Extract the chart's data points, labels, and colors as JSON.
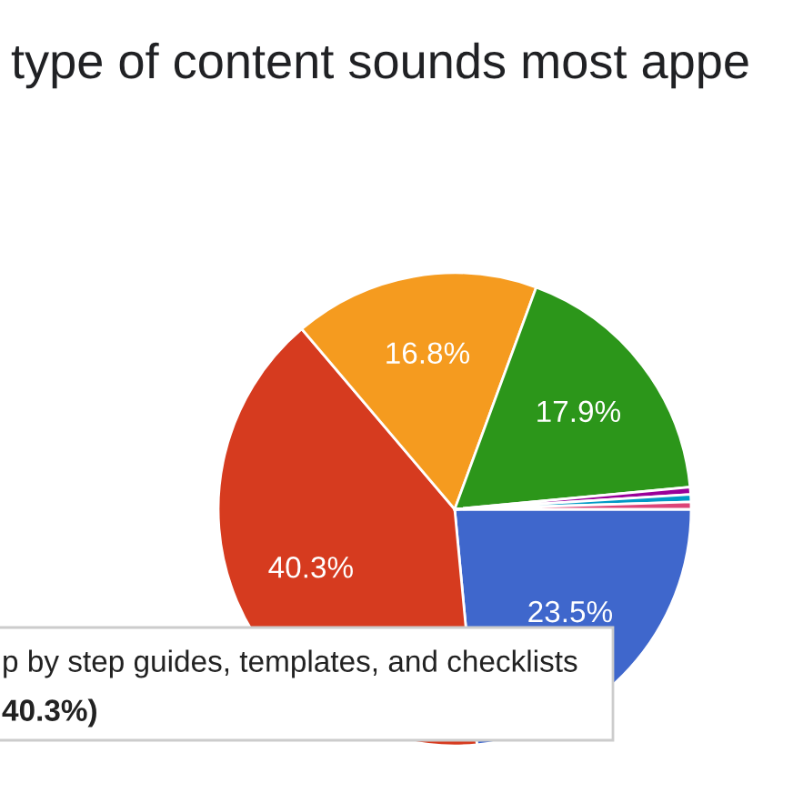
{
  "chart_data": {
    "type": "pie",
    "title": "type of content sounds most appe",
    "categories": [
      null,
      null,
      null,
      null,
      null,
      null,
      null
    ],
    "values": [
      23.5,
      40.3,
      16.8,
      17.9,
      0.5,
      0.5,
      0.5
    ],
    "colors": [
      "#3f67cc",
      "#d63b1f",
      "#f59b1f",
      "#2c961a",
      "#990099",
      "#0099c6",
      "#dd4477"
    ],
    "value_labels": [
      "23.5%",
      "40.3%",
      "16.8%",
      "17.9%",
      null,
      null,
      null
    ],
    "annotations": [
      "p by step guides, templates, and checklists",
      "40.3%)"
    ]
  }
}
